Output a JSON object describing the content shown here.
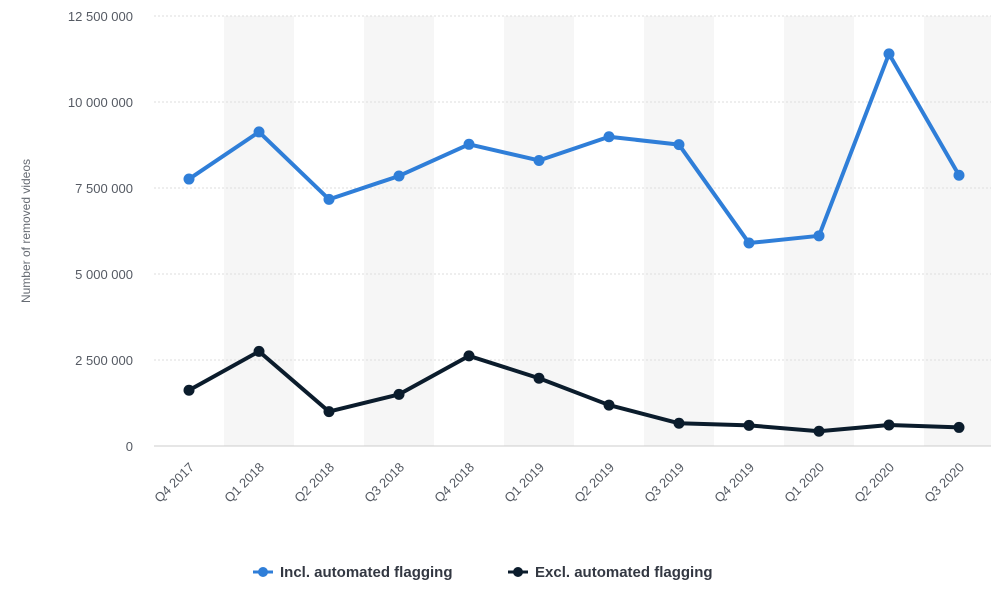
{
  "chart_data": {
    "type": "line",
    "categories": [
      "Q4 2017",
      "Q1 2018",
      "Q2 2018",
      "Q3 2018",
      "Q4 2018",
      "Q1 2019",
      "Q2 2019",
      "Q3 2019",
      "Q4 2019",
      "Q1 2020",
      "Q2 2020",
      "Q3 2020"
    ],
    "series": [
      {
        "name": "Incl. automated flagging",
        "color": "#2f7ed8",
        "values": [
          7760000,
          9130000,
          7170000,
          7850000,
          8770000,
          8300000,
          8990000,
          8760000,
          5900000,
          6110000,
          11400000,
          7870000
        ]
      },
      {
        "name": "Excl. automated flagging",
        "color": "#0b1c2c",
        "values": [
          1620000,
          2750000,
          1000000,
          1500000,
          2620000,
          1970000,
          1190000,
          660000,
          600000,
          430000,
          610000,
          540000
        ]
      }
    ],
    "ylabel": "Number of removed videos",
    "ylim": [
      0,
      12500000
    ],
    "yticks": [
      0,
      2500000,
      5000000,
      7500000,
      10000000,
      12500000
    ],
    "ytick_labels": [
      "0",
      "2 500 000",
      "5 000 000",
      "7 500 000",
      "10 000 000",
      "12 500 000"
    ],
    "grid": true,
    "legend_position": "bottom-center"
  }
}
